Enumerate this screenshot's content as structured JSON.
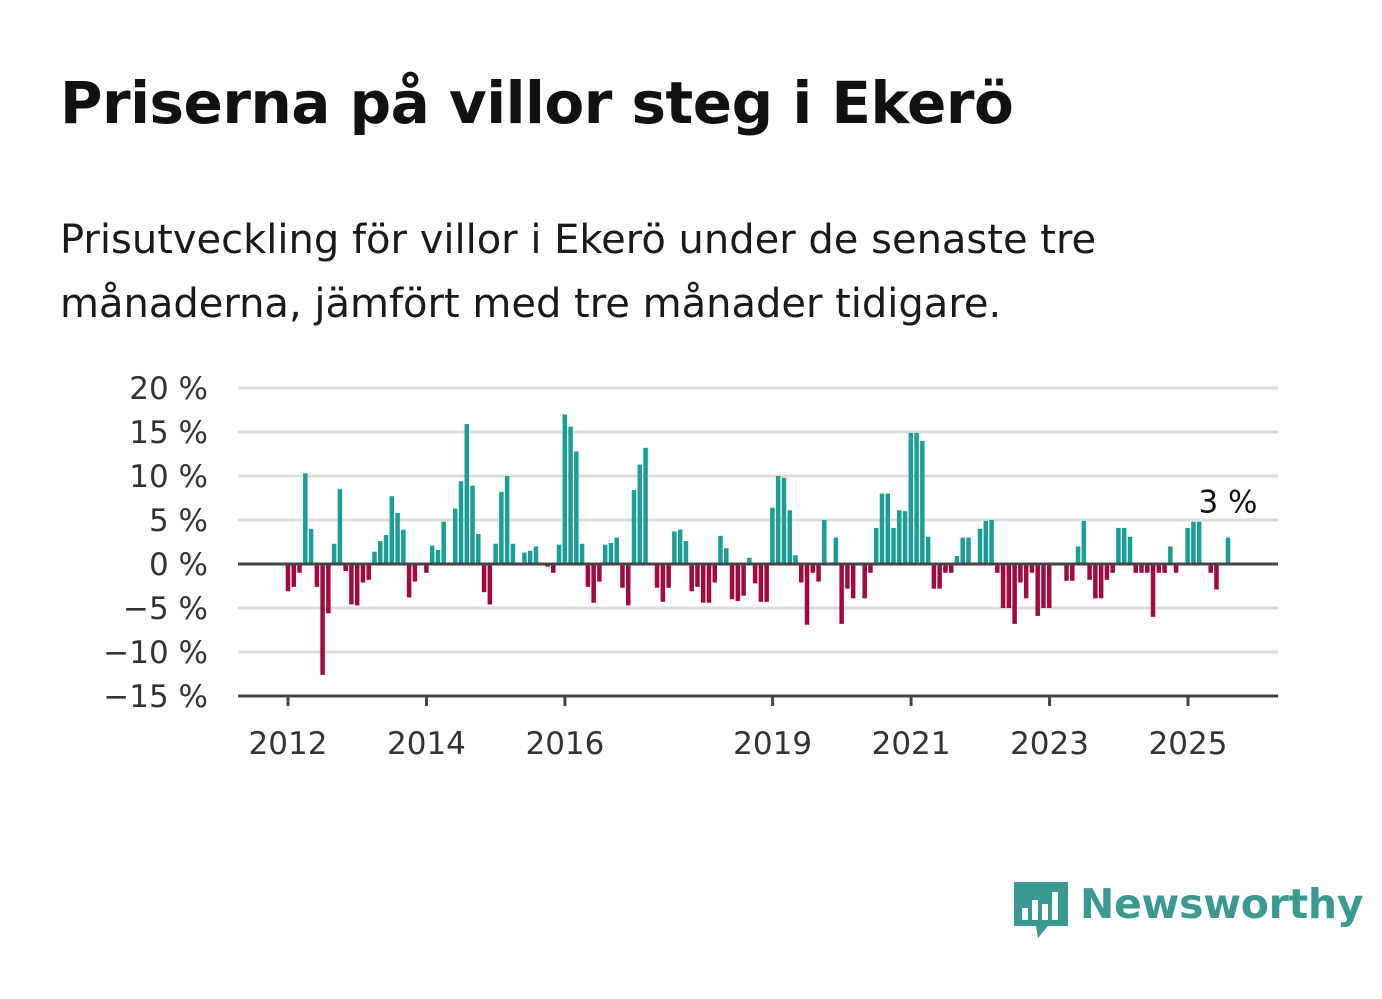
{
  "title": "Priserna på villor steg i Ekerö",
  "subtitle": "Prisutveckling för villor i Ekerö under de senaste tre månaderna, jämfört med tre månader tidigare.",
  "brand": {
    "name": "Newsworthy",
    "color": "#3a9a92",
    "icon": "bar-chart-speech-bubble-icon"
  },
  "colors": {
    "positive": "#1a9e96",
    "negative": "#a3083f",
    "grid": "#dddddd",
    "zero": "#444444"
  },
  "chart_data": {
    "type": "bar",
    "title": "",
    "xlabel": "",
    "ylabel": "",
    "unit": "%",
    "ylim": [
      -15,
      20
    ],
    "yticks": [
      20,
      15,
      10,
      5,
      0,
      -5,
      -10,
      -15
    ],
    "ytick_labels": [
      "20 %",
      "15 %",
      "10 %",
      "5 %",
      "0 %",
      "−5 %",
      "−10 %",
      "−15 %"
    ],
    "xticks": [
      2012,
      2014,
      2016,
      2019,
      2021,
      2023,
      2025
    ],
    "xtick_labels": [
      "2012",
      "2014",
      "2016",
      "2019",
      "2021",
      "2023",
      "2025"
    ],
    "x_start": 2012,
    "x_step": 0.0833,
    "grid": true,
    "legend": "none",
    "annotation": {
      "text": "3 %",
      "index": 163
    },
    "values": [
      -3.1,
      -2.6,
      -1.0,
      10.3,
      4.0,
      -2.6,
      -12.6,
      -5.6,
      2.3,
      8.5,
      -0.8,
      -4.6,
      -4.7,
      -2.1,
      -1.8,
      1.4,
      2.6,
      3.3,
      7.7,
      5.8,
      3.9,
      -3.8,
      -2.0,
      0.0,
      -1.0,
      2.1,
      1.6,
      4.8,
      0.0,
      6.3,
      9.4,
      15.9,
      8.9,
      3.4,
      -3.2,
      -4.6,
      2.3,
      8.2,
      10.0,
      2.3,
      0.0,
      1.3,
      1.5,
      2.0,
      0.0,
      -0.3,
      -1.0,
      2.2,
      17.0,
      15.6,
      12.8,
      2.3,
      -2.6,
      -4.4,
      -2.0,
      2.2,
      2.4,
      3.0,
      -2.7,
      -4.7,
      8.4,
      11.3,
      13.2,
      0.0,
      -2.7,
      -4.3,
      -2.7,
      3.7,
      3.9,
      2.6,
      -3.1,
      -2.6,
      -4.4,
      -4.4,
      -2.1,
      3.2,
      1.8,
      -4.0,
      -4.2,
      -3.6,
      0.7,
      -2.2,
      -4.3,
      -4.3,
      6.4,
      10.0,
      9.8,
      6.1,
      1.0,
      -2.1,
      -6.9,
      -1.0,
      -2.0,
      5.0,
      0.0,
      3.0,
      -6.8,
      -2.8,
      -3.9,
      0.0,
      -3.9,
      -1.0,
      4.1,
      8.0,
      8.0,
      4.1,
      6.1,
      6.0,
      14.9,
      14.9,
      14.0,
      3.1,
      -2.8,
      -2.8,
      -1.0,
      -1.0,
      0.9,
      3.0,
      3.0,
      0.0,
      4.0,
      4.9,
      5.0,
      -1.0,
      -5.0,
      -5.0,
      -6.8,
      -2.1,
      -3.9,
      -1.0,
      -5.9,
      -5.0,
      -5.0,
      0.0,
      0.0,
      -1.9,
      -1.9,
      2.0,
      4.9,
      -1.8,
      -3.9,
      -3.9,
      -1.8,
      -1.0,
      4.1,
      4.1,
      3.1,
      -1.0,
      -1.0,
      -1.0,
      -6.0,
      -1.0,
      -1.0,
      2.0,
      -1.0,
      0.0,
      4.1,
      4.8,
      4.8,
      0.0,
      -1.0,
      -2.9,
      0.0,
      3.0
    ]
  }
}
